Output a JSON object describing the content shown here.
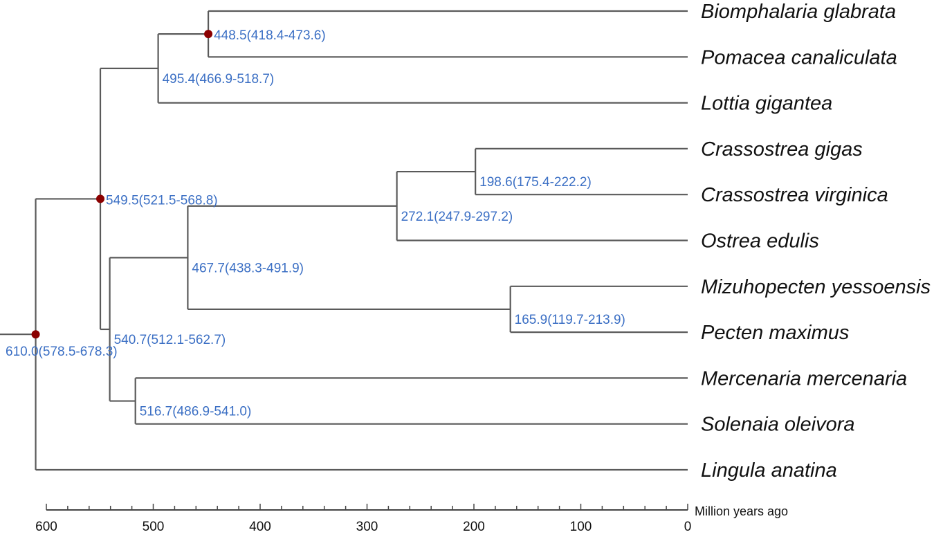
{
  "tree": {
    "root": "n610",
    "nodes": {
      "n610": {
        "age": 610.0,
        "label": "610.0(578.5-678.3)",
        "calibrated": true,
        "children": [
          "n549",
          "Lingula anatina"
        ]
      },
      "n549": {
        "age": 549.5,
        "label": "549.5(521.5-568.8)",
        "calibrated": true,
        "children": [
          "n495",
          "n540"
        ]
      },
      "n495": {
        "age": 495.4,
        "label": "495.4(466.9-518.7)",
        "calibrated": false,
        "children": [
          "n448",
          "Lottia gigantea"
        ]
      },
      "n448": {
        "age": 448.5,
        "label": "448.5(418.4-473.6)",
        "calibrated": true,
        "children": [
          "Biomphalaria glabrata",
          "Pomacea canaliculata"
        ]
      },
      "n540": {
        "age": 540.7,
        "label": "540.7(512.1-562.7)",
        "calibrated": false,
        "children": [
          "n467",
          "n516"
        ]
      },
      "n467": {
        "age": 467.7,
        "label": "467.7(438.3-491.9)",
        "calibrated": false,
        "children": [
          "n272",
          "n165"
        ]
      },
      "n272": {
        "age": 272.1,
        "label": "272.1(247.9-297.2)",
        "calibrated": false,
        "children": [
          "n198",
          "Ostrea edulis"
        ]
      },
      "n198": {
        "age": 198.6,
        "label": "198.6(175.4-222.2)",
        "calibrated": false,
        "children": [
          "Crassostrea gigas",
          "Crassostrea virginica"
        ]
      },
      "n165": {
        "age": 165.9,
        "label": "165.9(119.7-213.9)",
        "calibrated": false,
        "children": [
          "Mizuhopecten yessoensis",
          "Pecten maximus"
        ]
      },
      "n516": {
        "age": 516.7,
        "label": "516.7(486.9-541.0)",
        "calibrated": false,
        "children": [
          "Mercenaria mercenaria",
          "Solenaia oleivora"
        ]
      }
    },
    "taxa": [
      "Biomphalaria glabrata",
      "Pomacea canaliculata",
      "Lottia gigantea",
      "Crassostrea gigas",
      "Crassostrea virginica",
      "Ostrea edulis",
      "Mizuhopecten yessoensis",
      "Pecten maximus",
      "Mercenaria mercenaria",
      "Solenaia oleivora",
      "Lingula anatina"
    ]
  },
  "axis": {
    "title": "Million years ago",
    "min": 0,
    "max": 600,
    "major_ticks": [
      600,
      500,
      400,
      300,
      200,
      100,
      0
    ],
    "minor_step": 20
  },
  "colors": {
    "branch": "#5a5a5a",
    "node_label": "#3b6fc4",
    "calibration_point": "#8b0000"
  }
}
